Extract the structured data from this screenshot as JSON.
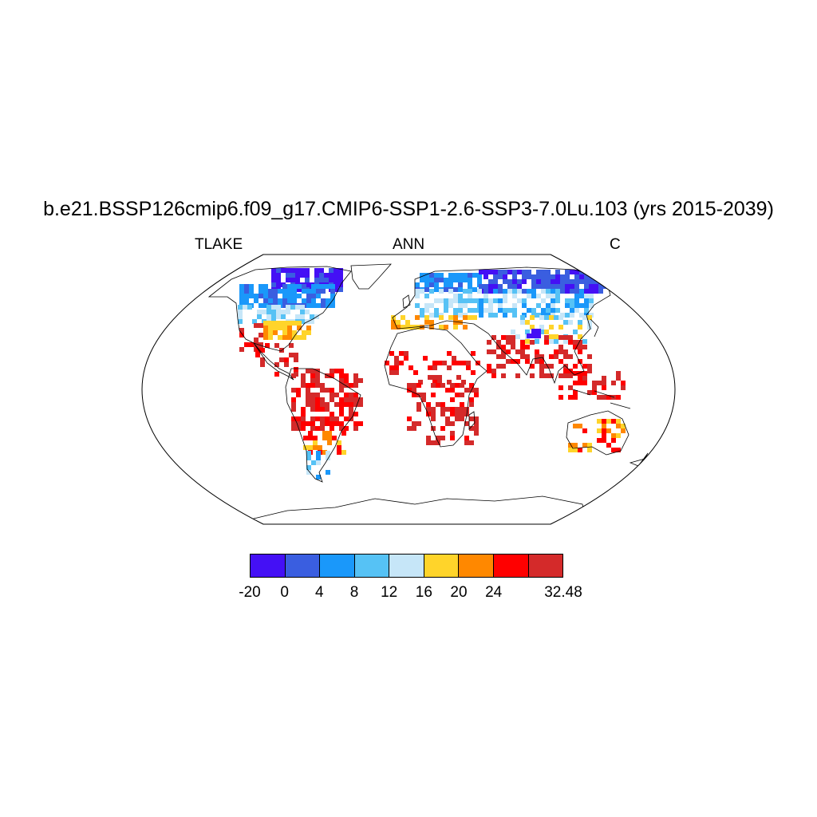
{
  "title": "b.e21.BSSP126cmip6.f09_g17.CMIP6-SSP1-2.6-SSP3-7.0Lu.103 (yrs 2015-2039)",
  "subtitle_left": "TLAKE",
  "subtitle_center": "ANN",
  "subtitle_right": "C",
  "map": {
    "projection": "robinson",
    "background": "#ffffff",
    "coastline_color": "#000000"
  },
  "colorbar": {
    "colors": [
      "#4410f5",
      "#3a5ee0",
      "#1a98fa",
      "#56c2f5",
      "#c6e6f8",
      "#ffd42a",
      "#ff8800",
      "#ff0000",
      "#d42a2a"
    ],
    "labels": [
      {
        "text": "-20",
        "boundary": 0
      },
      {
        "text": "0",
        "boundary": 1
      },
      {
        "text": "4",
        "boundary": 2
      },
      {
        "text": "8",
        "boundary": 3
      },
      {
        "text": "12",
        "boundary": 4
      },
      {
        "text": "16",
        "boundary": 5
      },
      {
        "text": "20",
        "boundary": 6
      },
      {
        "text": "24",
        "boundary": 7
      },
      {
        "text": "32.48",
        "boundary": 9
      }
    ]
  }
}
